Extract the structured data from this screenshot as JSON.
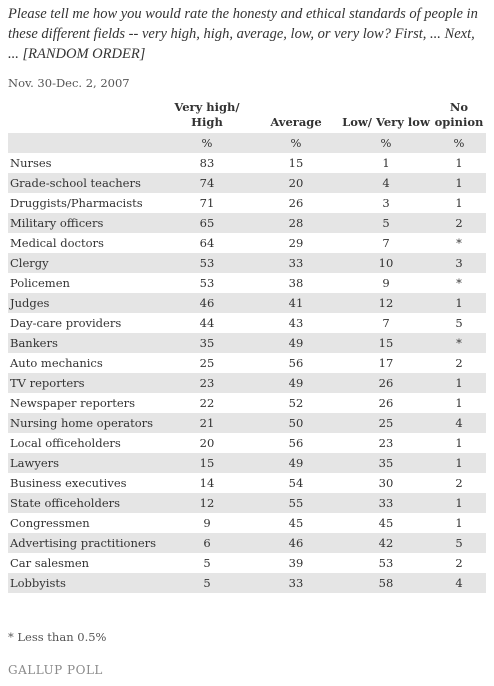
{
  "question": "Please tell me how you would rate the honesty and ethical standards of people in these different fields -- very high, high, average, low, or very low? First, ... Next, ... [RANDOM ORDER]",
  "date": "Nov. 30-Dec. 2, 2007",
  "columns": [
    "Very high/ High",
    "Average",
    "Low/ Very low",
    "No opinion"
  ],
  "units": [
    "%",
    "%",
    "%",
    "%"
  ],
  "rows": [
    {
      "label": "Nurses",
      "values": [
        "83",
        "15",
        "1",
        "1"
      ]
    },
    {
      "label": "Grade-school teachers",
      "values": [
        "74",
        "20",
        "4",
        "1"
      ]
    },
    {
      "label": "Druggists/Pharmacists",
      "values": [
        "71",
        "26",
        "3",
        "1"
      ]
    },
    {
      "label": "Military officers",
      "values": [
        "65",
        "28",
        "5",
        "2"
      ]
    },
    {
      "label": "Medical doctors",
      "values": [
        "64",
        "29",
        "7",
        "*"
      ]
    },
    {
      "label": "Clergy",
      "values": [
        "53",
        "33",
        "10",
        "3"
      ]
    },
    {
      "label": "Policemen",
      "values": [
        "53",
        "38",
        "9",
        "*"
      ]
    },
    {
      "label": "Judges",
      "values": [
        "46",
        "41",
        "12",
        "1"
      ]
    },
    {
      "label": "Day-care providers",
      "values": [
        "44",
        "43",
        "7",
        "5"
      ]
    },
    {
      "label": "Bankers",
      "values": [
        "35",
        "49",
        "15",
        "*"
      ]
    },
    {
      "label": "Auto mechanics",
      "values": [
        "25",
        "56",
        "17",
        "2"
      ]
    },
    {
      "label": "TV reporters",
      "values": [
        "23",
        "49",
        "26",
        "1"
      ]
    },
    {
      "label": "Newspaper reporters",
      "values": [
        "22",
        "52",
        "26",
        "1"
      ]
    },
    {
      "label": "Nursing home operators",
      "values": [
        "21",
        "50",
        "25",
        "4"
      ]
    },
    {
      "label": "Local officeholders",
      "values": [
        "20",
        "56",
        "23",
        "1"
      ]
    },
    {
      "label": "Lawyers",
      "values": [
        "15",
        "49",
        "35",
        "1"
      ]
    },
    {
      "label": "Business executives",
      "values": [
        "14",
        "54",
        "30",
        "2"
      ]
    },
    {
      "label": "State officeholders",
      "values": [
        "12",
        "55",
        "33",
        "1"
      ]
    },
    {
      "label": "Congressmen",
      "values": [
        "9",
        "45",
        "45",
        "1"
      ]
    },
    {
      "label": "Advertising practitioners",
      "values": [
        "6",
        "46",
        "42",
        "5"
      ]
    },
    {
      "label": "Car salesmen",
      "values": [
        "5",
        "39",
        "53",
        "2"
      ]
    },
    {
      "label": "Lobbyists",
      "values": [
        "5",
        "33",
        "58",
        "4"
      ]
    }
  ],
  "footnote": "* Less than 0.5%",
  "logo": "GALLUP POLL",
  "colors": {
    "stripe": "#e5e5e5",
    "text": "#333333",
    "logo": "#8a8a8a"
  }
}
